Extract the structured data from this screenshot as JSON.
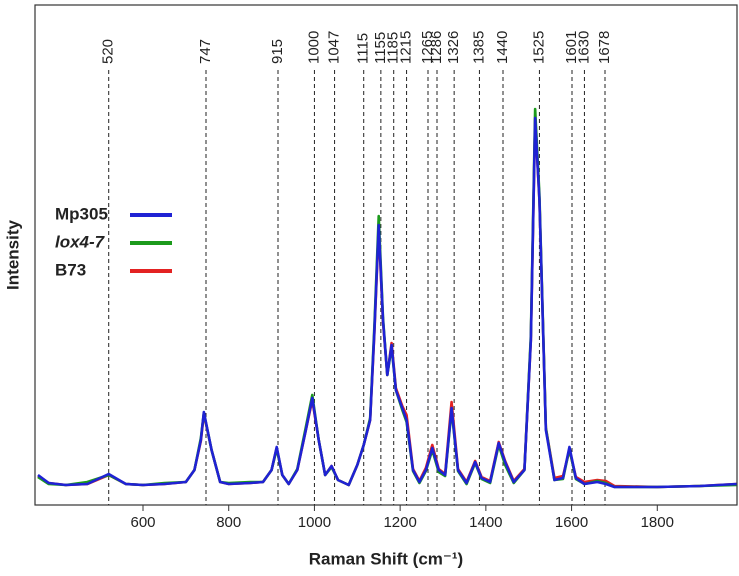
{
  "chart_data": {
    "type": "line",
    "xlabel": "Raman Shift (cm⁻¹)",
    "ylabel": "Intensity",
    "xlim": [
      348,
      1986
    ],
    "ylim": [
      0,
      100
    ],
    "xticks": [
      600,
      800,
      1000,
      1200,
      1400,
      1600,
      1800
    ],
    "vlines": [
      520,
      747,
      915,
      1000,
      1047,
      1115,
      1155,
      1185,
      1215,
      1265,
      1286,
      1326,
      1385,
      1440,
      1525,
      1601,
      1630,
      1678
    ],
    "x": [
      355,
      380,
      420,
      470,
      520,
      560,
      600,
      650,
      700,
      720,
      735,
      742,
      760,
      780,
      800,
      850,
      880,
      900,
      912,
      925,
      940,
      960,
      980,
      995,
      1010,
      1025,
      1040,
      1055,
      1080,
      1100,
      1115,
      1130,
      1140,
      1150,
      1160,
      1170,
      1180,
      1190,
      1205,
      1215,
      1230,
      1245,
      1260,
      1275,
      1290,
      1305,
      1320,
      1335,
      1355,
      1375,
      1390,
      1410,
      1430,
      1445,
      1465,
      1490,
      1505,
      1515,
      1525,
      1540,
      1560,
      1580,
      1595,
      1610,
      1630,
      1660,
      1680,
      1700,
      1800,
      1900,
      1985
    ],
    "series": [
      {
        "name": "Mp305",
        "color": "#1f22d4",
        "values": [
          6,
          4.4,
          4,
          4.2,
          6.2,
          4.2,
          4,
          4.2,
          4.6,
          7,
          13,
          18.6,
          11,
          4.6,
          4.2,
          4.4,
          4.6,
          7,
          11.6,
          6,
          4.2,
          7,
          15,
          21.4,
          13,
          6,
          7.8,
          5,
          4,
          8,
          12,
          17,
          35,
          56,
          37,
          26,
          32,
          23,
          19.4,
          17,
          7,
          4.6,
          7,
          11.4,
          7,
          6,
          19.4,
          7,
          4.4,
          8.6,
          5.4,
          4.6,
          12.4,
          8.6,
          4.6,
          7,
          33,
          77.4,
          61,
          15,
          5,
          5.4,
          11.6,
          5.4,
          4.2,
          4.6,
          4.2,
          3.6,
          3.6,
          3.8,
          4.2
        ]
      },
      {
        "name": "lox4-7",
        "color": "#1c9a1c",
        "values": [
          5.6,
          4.2,
          4,
          4.6,
          6,
          4.2,
          4,
          4.4,
          4.6,
          7,
          13.4,
          18.4,
          11,
          4.6,
          4.4,
          4.6,
          4.6,
          7,
          11.2,
          6,
          4.2,
          7.2,
          15.6,
          22,
          13,
          6,
          7.6,
          5,
          4,
          8,
          12,
          17.4,
          36,
          57.8,
          37.4,
          26,
          31.6,
          23,
          19,
          16.6,
          6.8,
          4.4,
          6.8,
          11,
          6.6,
          5.8,
          19,
          6.8,
          4.2,
          8.4,
          5.2,
          4.4,
          12,
          8,
          4.4,
          7,
          34,
          79.2,
          62,
          15.4,
          5,
          5.2,
          11.2,
          5.2,
          4.2,
          4.8,
          4.4,
          3.6,
          3.6,
          3.8,
          4
        ]
      },
      {
        "name": "B73",
        "color": "#e32222",
        "values": [
          5.8,
          4.4,
          4,
          4.2,
          6,
          4.2,
          4,
          4.2,
          4.6,
          7,
          12.8,
          18.2,
          11,
          4.6,
          4.2,
          4.4,
          4.6,
          7,
          11.4,
          6,
          4.2,
          7,
          15,
          21,
          13,
          6,
          7.8,
          5,
          4,
          8,
          12,
          17,
          34.6,
          55.4,
          36.6,
          26,
          32.4,
          23.4,
          19.8,
          18,
          7.2,
          4.8,
          7.4,
          12,
          7.2,
          6.2,
          20.6,
          7.2,
          4.6,
          8.8,
          5.6,
          4.8,
          12.6,
          8.8,
          4.8,
          7.2,
          33,
          77,
          61,
          15.4,
          5.4,
          5.8,
          11,
          5.6,
          4.6,
          5,
          4.8,
          3.8,
          3.6,
          3.8,
          4.2
        ]
      }
    ]
  }
}
